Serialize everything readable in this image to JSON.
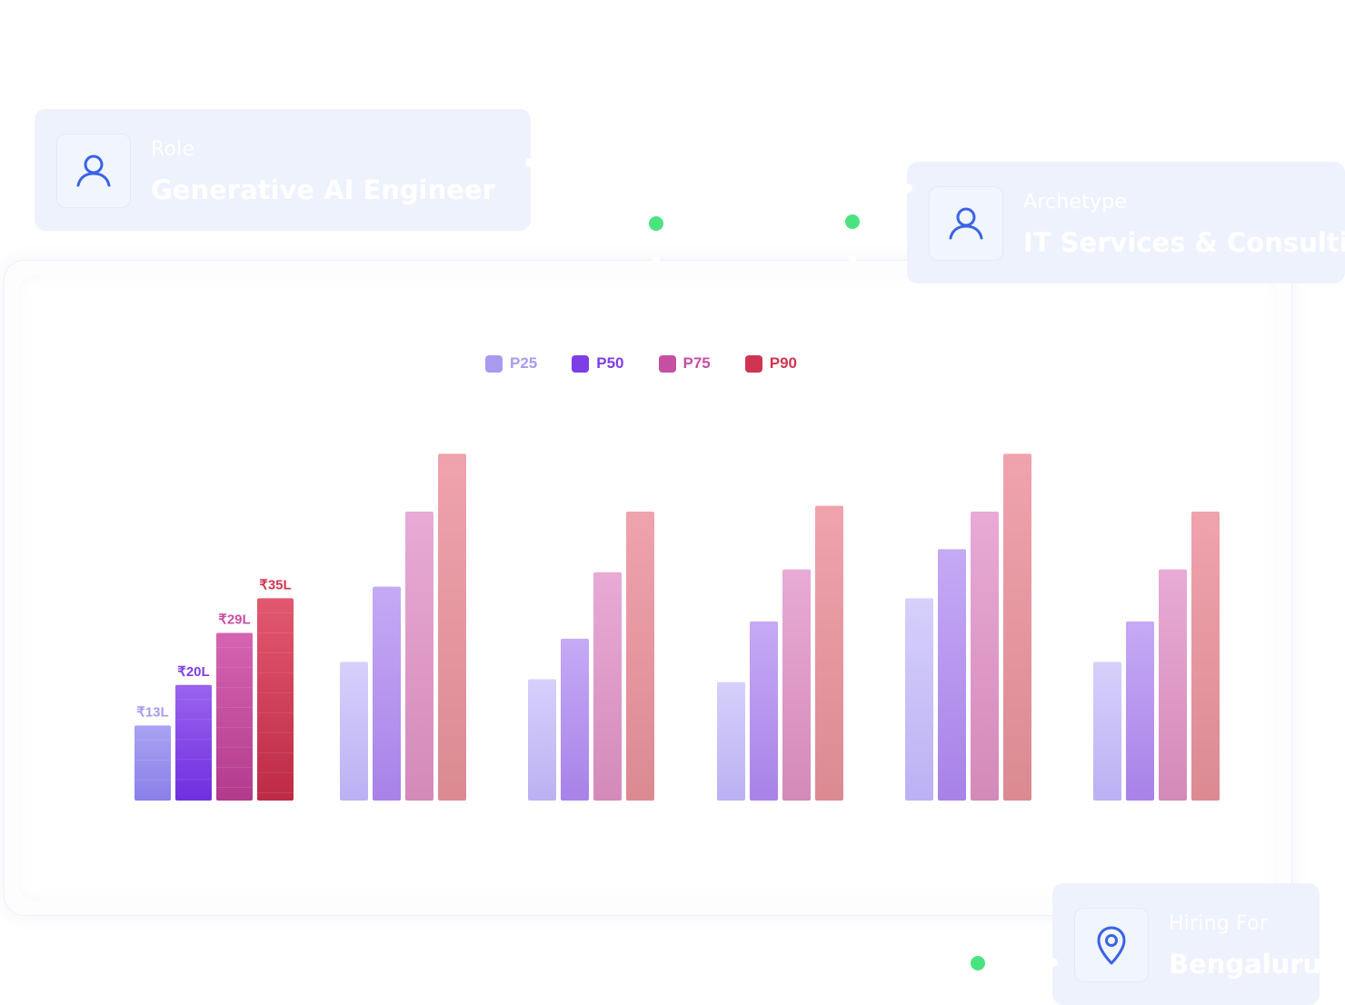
{
  "cards": {
    "role": {
      "label": "Role",
      "value": "Generative AI Engineer",
      "icon": "user-icon"
    },
    "archetype": {
      "label": "Archetype",
      "value": "IT Services & Consulting",
      "icon": "user-icon"
    },
    "hiring": {
      "label": "Hiring For",
      "value": "Bengaluru",
      "icon": "location-pin-icon"
    }
  },
  "colors": {
    "P25": "#a99af0",
    "P50": "#7d3ee6",
    "P75": "#c54fa3",
    "P90": "#cf3550",
    "dot": "#4be37f"
  },
  "chart_data": {
    "type": "bar",
    "title": "",
    "xlabel": "",
    "ylabel": "",
    "legend_position": "top-center",
    "grid": false,
    "unit": "₹ Lakh",
    "categories": [
      "",
      "",
      "",
      "",
      "",
      ""
    ],
    "series": [
      {
        "name": "P25",
        "values": [
          13,
          24,
          21,
          20.5,
          35,
          24
        ]
      },
      {
        "name": "P50",
        "values": [
          20,
          37,
          28,
          31,
          43.5,
          31
        ]
      },
      {
        "name": "P75",
        "values": [
          29,
          50,
          39.5,
          40,
          50,
          40
        ]
      },
      {
        "name": "P90",
        "values": [
          35,
          60,
          50,
          51,
          60,
          50
        ]
      }
    ],
    "data_labels": [
      "₹13L",
      "₹20L",
      "₹29L",
      "₹35L"
    ]
  }
}
